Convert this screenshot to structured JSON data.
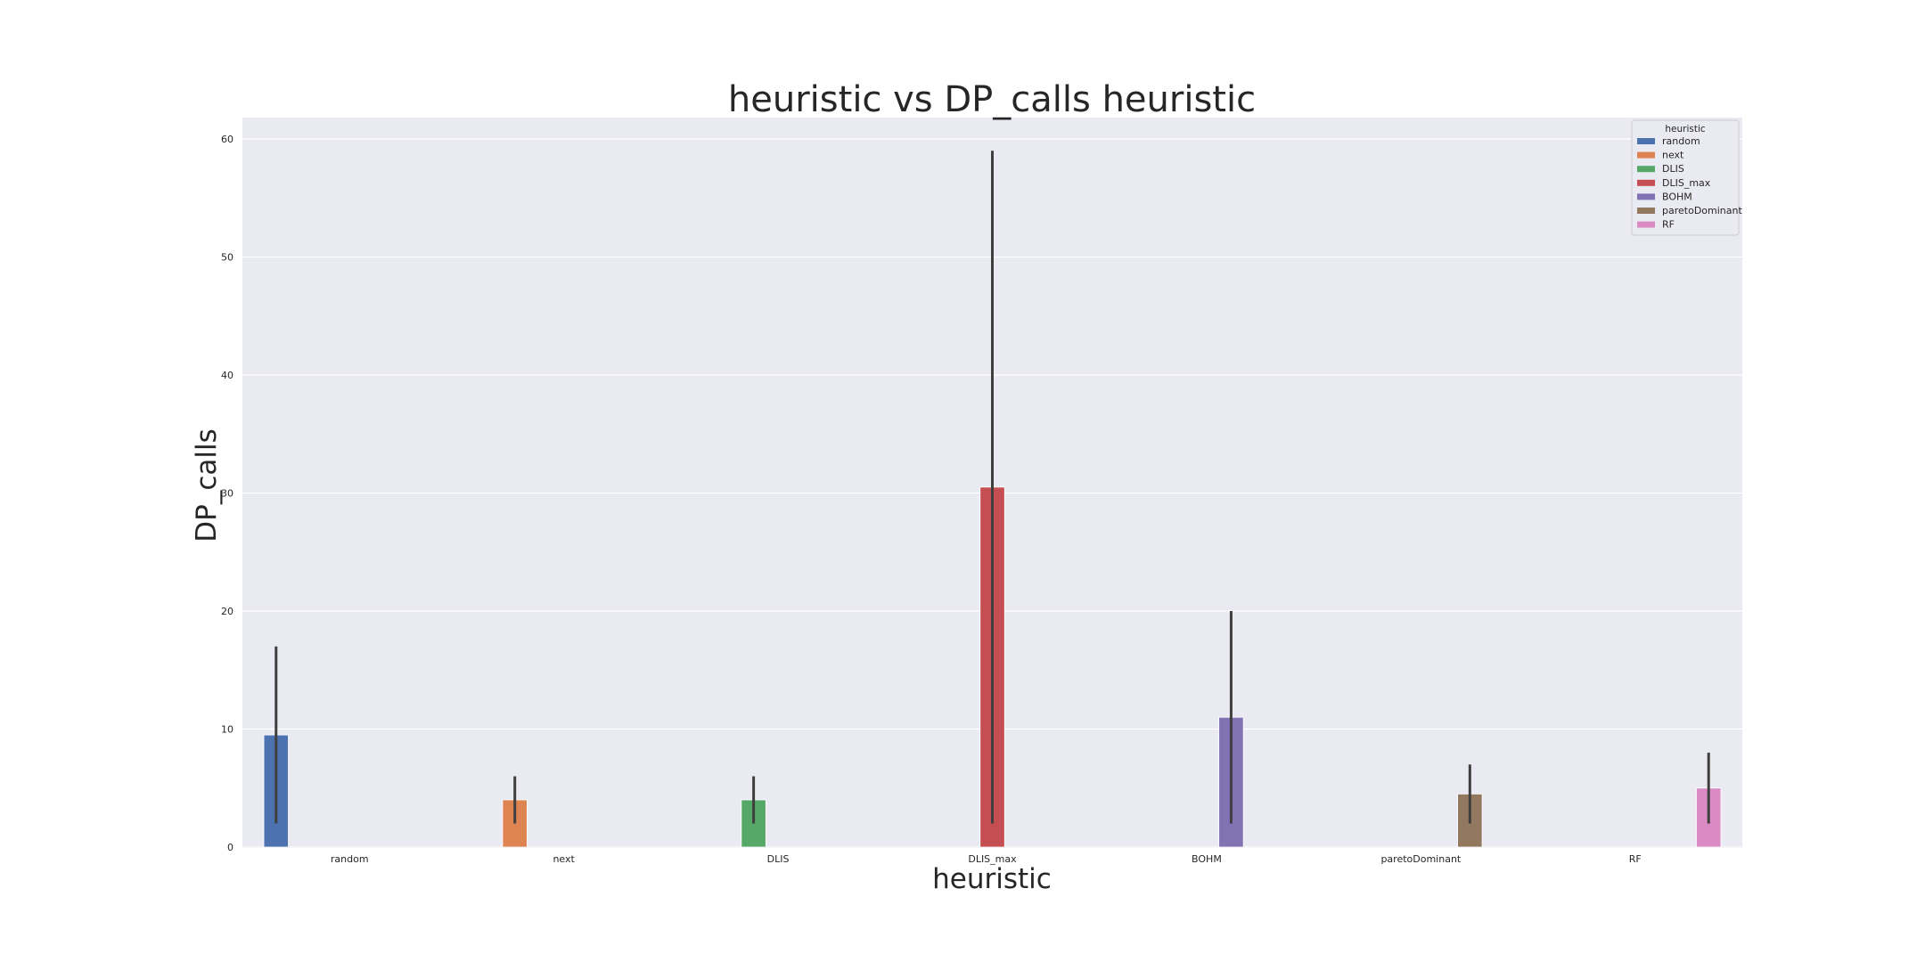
{
  "chart_data": {
    "type": "bar",
    "title": "heuristic vs DP_calls heuristic",
    "xlabel": "heuristic",
    "ylabel": "DP_calls",
    "categories": [
      "random",
      "next",
      "DLIS",
      "DLIS_max",
      "BOHM",
      "paretoDominant",
      "RF"
    ],
    "yticks": [
      0,
      10,
      20,
      30,
      40,
      50,
      60
    ],
    "ylim": [
      0,
      62
    ],
    "grid": true,
    "legend": {
      "title": "heuristic",
      "placement": "top-right"
    },
    "series": [
      {
        "name": "random",
        "color": "#4c72b0",
        "values": [
          9.5,
          null,
          null,
          null,
          null,
          null,
          null
        ],
        "ci": [
          [
            2,
            17
          ]
        ]
      },
      {
        "name": "next",
        "color": "#dd8452",
        "values": [
          null,
          4,
          null,
          null,
          null,
          null,
          null
        ],
        "ci": [
          [
            2,
            6
          ]
        ]
      },
      {
        "name": "DLIS",
        "color": "#55a868",
        "values": [
          null,
          null,
          4,
          null,
          null,
          null,
          null
        ],
        "ci": [
          [
            2,
            6
          ]
        ]
      },
      {
        "name": "DLIS_max",
        "color": "#c44e52",
        "values": [
          null,
          null,
          null,
          30.5,
          null,
          null,
          null
        ],
        "ci": [
          [
            2,
            59
          ]
        ]
      },
      {
        "name": "BOHM",
        "color": "#8172b3",
        "values": [
          null,
          null,
          null,
          null,
          11,
          null,
          null
        ],
        "ci": [
          [
            2,
            20
          ]
        ]
      },
      {
        "name": "paretoDominant",
        "color": "#937860",
        "values": [
          null,
          null,
          null,
          null,
          null,
          4.5,
          null
        ],
        "ci": [
          [
            2,
            7
          ]
        ]
      },
      {
        "name": "RF",
        "color": "#da8bc3",
        "values": [
          null,
          null,
          null,
          null,
          null,
          null,
          5
        ],
        "ci": [
          [
            2,
            8
          ]
        ]
      }
    ]
  }
}
